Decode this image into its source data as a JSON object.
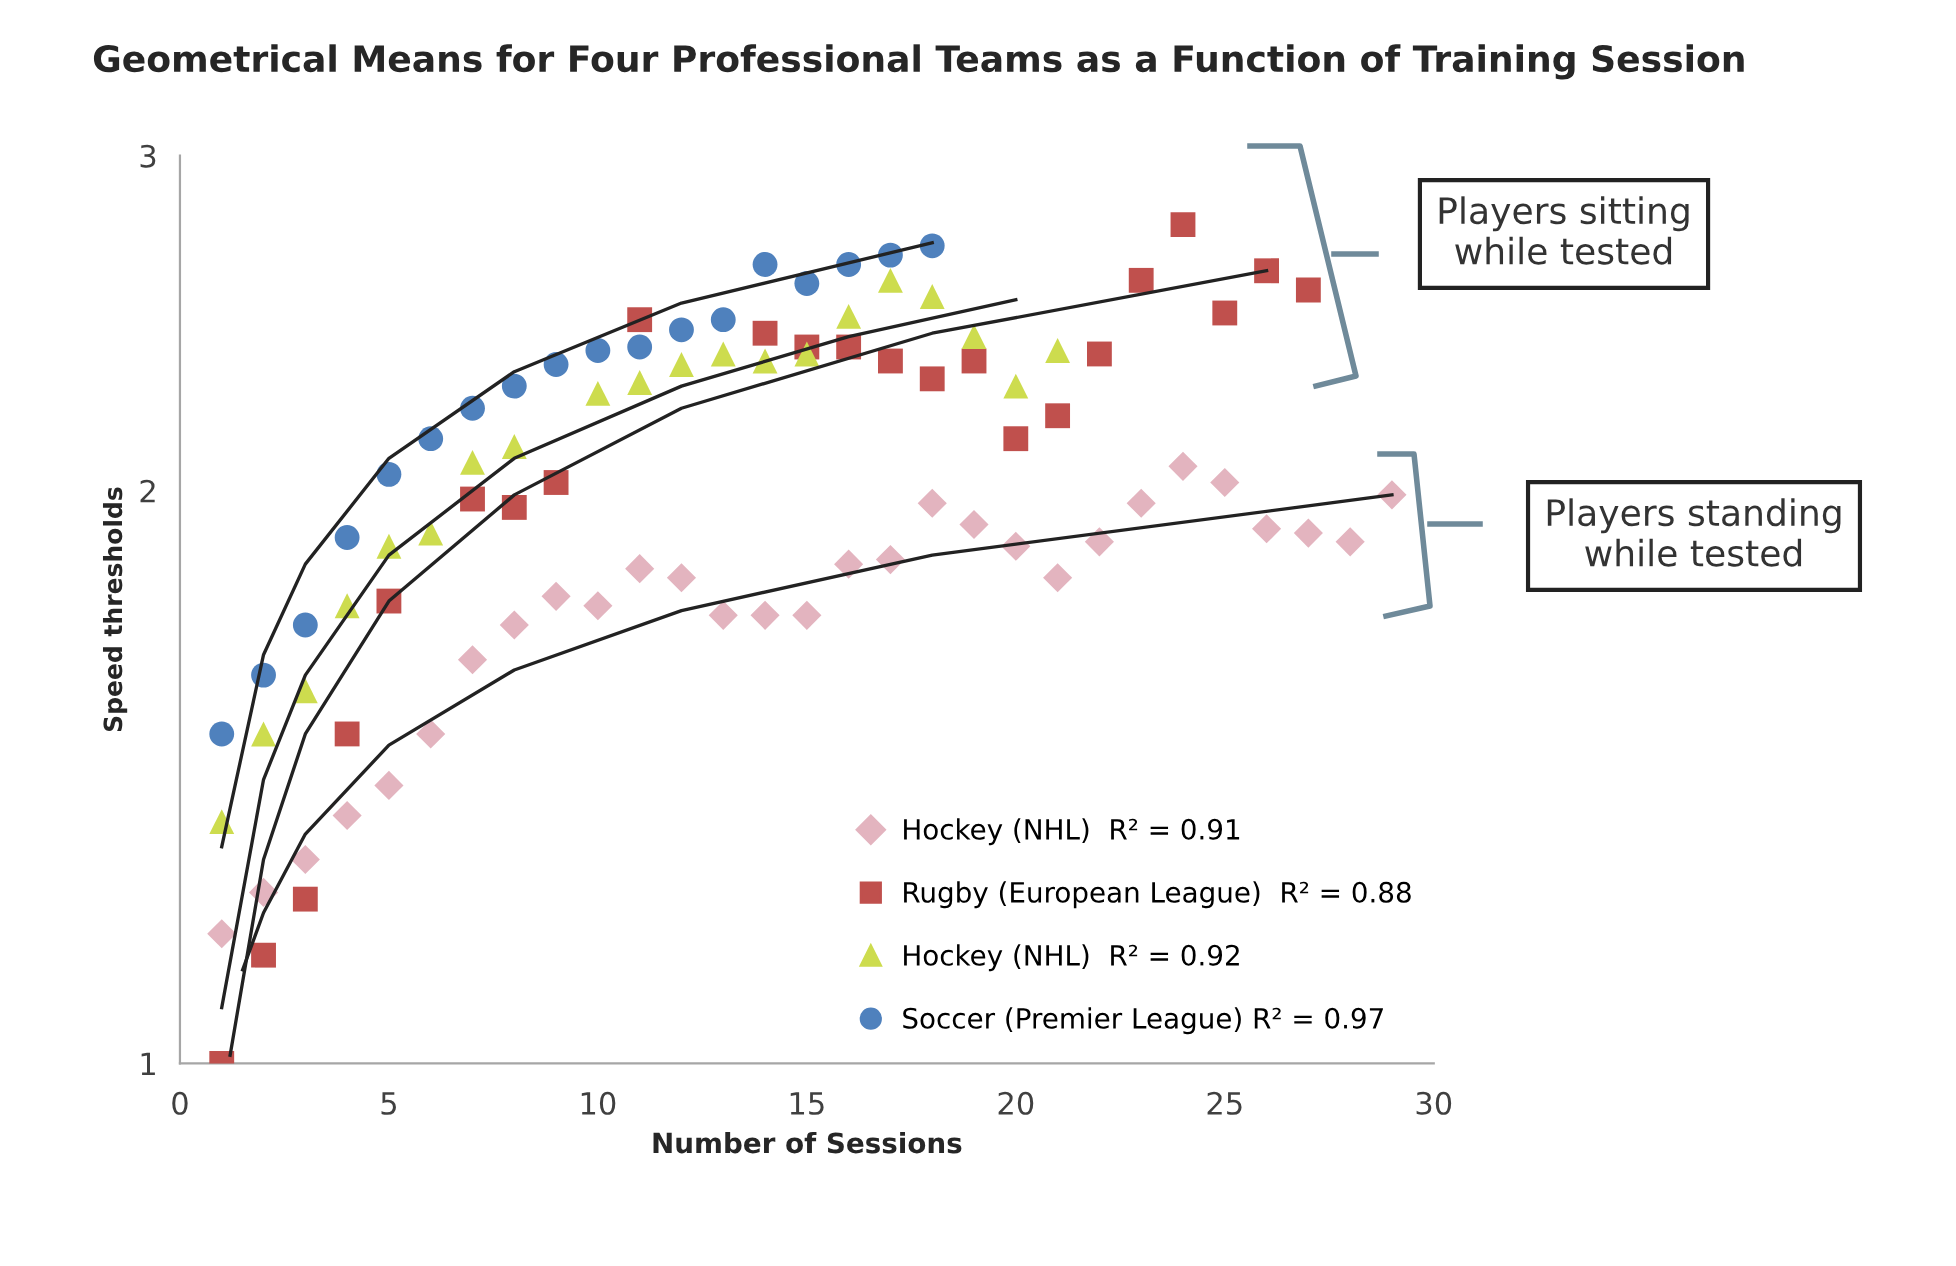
{
  "chart_data": {
    "type": "scatter",
    "title": "Geometrical Means for Four Professional Teams as a Function of Training Session",
    "xlabel": "Number of Sessions",
    "ylabel": "Speed thresholds",
    "x": [
      1,
      2,
      3,
      4,
      5,
      6,
      7,
      8,
      9,
      10,
      11,
      12,
      13,
      14,
      15,
      16,
      17,
      18,
      19,
      20,
      21,
      22,
      23,
      24,
      25,
      26,
      27,
      28,
      29
    ],
    "series": [
      {
        "name": "Hockey (NHL)  R² = 0.91",
        "color": "#e3b4bf",
        "marker": "diamond",
        "values": [
          1.17,
          1.23,
          1.28,
          1.35,
          1.4,
          1.49,
          1.63,
          1.7,
          1.76,
          1.74,
          1.82,
          1.8,
          1.72,
          1.72,
          1.72,
          1.83,
          1.84,
          1.97,
          1.92,
          1.87,
          1.8,
          1.88,
          1.97,
          2.06,
          2.02,
          1.91,
          1.9,
          1.88,
          1.99
        ]
      },
      {
        "name": "Rugby (European League)  R² = 0.88",
        "color": "#c0504d",
        "marker": "square",
        "values": [
          1.0,
          1.14,
          1.22,
          1.49,
          1.75,
          null,
          1.98,
          1.96,
          2.02,
          null,
          2.46,
          null,
          null,
          2.42,
          2.38,
          2.38,
          2.34,
          2.29,
          2.34,
          2.13,
          2.19,
          2.36,
          2.58,
          2.76,
          2.48,
          2.61,
          2.55,
          null,
          null
        ]
      },
      {
        "name": "Hockey (NHL)  R² = 0.92",
        "color": "#cddc4e",
        "marker": "triangle",
        "values": [
          1.34,
          1.49,
          1.57,
          1.74,
          1.87,
          1.9,
          2.07,
          2.11,
          null,
          2.25,
          2.28,
          2.33,
          2.36,
          2.34,
          2.36,
          2.47,
          2.58,
          2.53,
          2.41,
          2.27,
          2.37,
          null,
          null,
          null,
          null,
          null,
          null,
          null,
          null
        ]
      },
      {
        "name": "Soccer (Premier League) R² = 0.97",
        "color": "#4f81bd",
        "marker": "circle",
        "values": [
          1.49,
          1.6,
          1.7,
          1.89,
          2.04,
          2.13,
          2.21,
          2.27,
          2.33,
          2.37,
          2.38,
          2.43,
          2.46,
          2.63,
          2.57,
          2.63,
          2.66,
          2.69,
          null,
          null,
          null,
          null,
          null,
          null,
          null,
          null,
          null,
          null,
          null
        ]
      },
      {
        "type": "line",
        "color": "#222222",
        "marker": "none",
        "x": [
          1.5,
          2,
          3,
          5,
          8,
          12,
          18,
          29
        ],
        "values": [
          1.12,
          1.2,
          1.32,
          1.47,
          1.61,
          1.73,
          1.85,
          1.99
        ]
      },
      {
        "type": "line",
        "color": "#222222",
        "marker": "none",
        "x": [
          1.2,
          2,
          3,
          5,
          8,
          12,
          18,
          26
        ],
        "values": [
          1.01,
          1.28,
          1.49,
          1.75,
          1.99,
          2.21,
          2.42,
          2.61
        ]
      },
      {
        "type": "line",
        "color": "#222222",
        "marker": "none",
        "x": [
          1,
          2,
          3,
          5,
          8,
          12,
          16,
          20
        ],
        "values": [
          1.07,
          1.41,
          1.6,
          1.85,
          2.08,
          2.27,
          2.41,
          2.52
        ]
      },
      {
        "type": "line",
        "color": "#222222",
        "marker": "none",
        "x": [
          1,
          2,
          3,
          5,
          8,
          12,
          18
        ],
        "values": [
          1.3,
          1.64,
          1.83,
          2.08,
          2.31,
          2.51,
          2.7
        ]
      }
    ],
    "xlim": [
      0,
      30
    ],
    "xticks": [
      0,
      5,
      10,
      15,
      20,
      25,
      30
    ],
    "log": "y",
    "ylim": [
      1,
      3
    ],
    "yticks": [
      1,
      2,
      3
    ],
    "grid": false,
    "legend": "bottom right",
    "annotations": [
      "Players sitting while tested",
      "Players standing while tested"
    ]
  }
}
